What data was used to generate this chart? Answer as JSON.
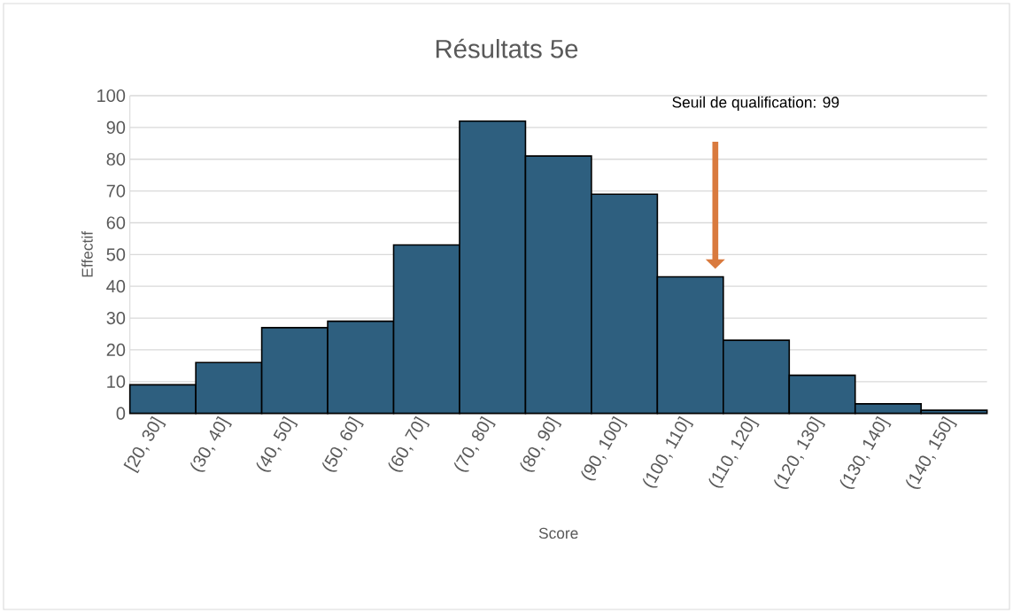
{
  "chart_data": {
    "type": "bar",
    "title": "Résultats 5e",
    "xlabel": "Score",
    "ylabel": "Effectif",
    "categories": [
      "[20, 30]",
      "(30, 40]",
      "(40, 50]",
      "(50, 60]",
      "(60, 70]",
      "(70, 80]",
      "(80, 90]",
      "(90, 100]",
      "(100, 110]",
      "(110, 120]",
      "(120, 130]",
      "(130, 140]",
      "(140, 150]"
    ],
    "values": [
      9,
      16,
      27,
      29,
      53,
      92,
      81,
      69,
      43,
      23,
      12,
      3,
      1
    ],
    "color": "#2e5f7f",
    "ylim": [
      0,
      100
    ],
    "yticks": [
      0,
      10,
      20,
      30,
      40,
      50,
      60,
      70,
      80,
      90,
      100
    ],
    "grid": "y",
    "annotations": [
      "Seuil de qualification: 99"
    ]
  }
}
